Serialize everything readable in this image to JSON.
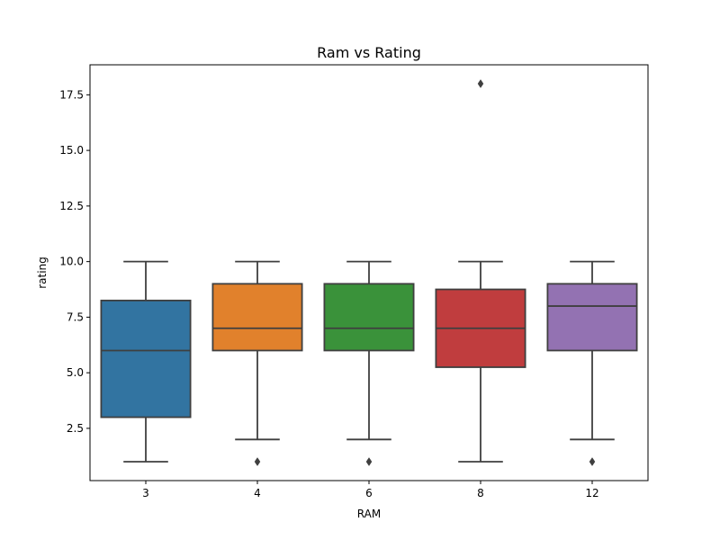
{
  "chart_data": {
    "type": "box",
    "title": "Ram vs Rating",
    "xlabel": "RAM",
    "ylabel": "rating",
    "ylim": [
      0.15,
      18.85
    ],
    "yticks": [
      "2.5",
      "5.0",
      "7.5",
      "10.0",
      "12.5",
      "15.0",
      "17.5"
    ],
    "categories": [
      "3",
      "4",
      "6",
      "8",
      "12"
    ],
    "colors": [
      "#3274a1",
      "#e1812c",
      "#3a923a",
      "#c03d3e",
      "#9372b2"
    ],
    "boxes": [
      {
        "category": "3",
        "whisker_low": 1,
        "q1": 3,
        "median": 6,
        "q3": 8.25,
        "whisker_high": 10,
        "outliers": []
      },
      {
        "category": "4",
        "whisker_low": 2,
        "q1": 6,
        "median": 7,
        "q3": 9,
        "whisker_high": 10,
        "outliers": [
          1
        ]
      },
      {
        "category": "6",
        "whisker_low": 2,
        "q1": 6,
        "median": 7,
        "q3": 9,
        "whisker_high": 10,
        "outliers": [
          1
        ]
      },
      {
        "category": "8",
        "whisker_low": 1,
        "q1": 5.25,
        "median": 7,
        "q3": 8.75,
        "whisker_high": 10,
        "outliers": [
          18
        ]
      },
      {
        "category": "12",
        "whisker_low": 2,
        "q1": 6,
        "median": 8,
        "q3": 9,
        "whisker_high": 10,
        "outliers": [
          1
        ]
      }
    ]
  }
}
